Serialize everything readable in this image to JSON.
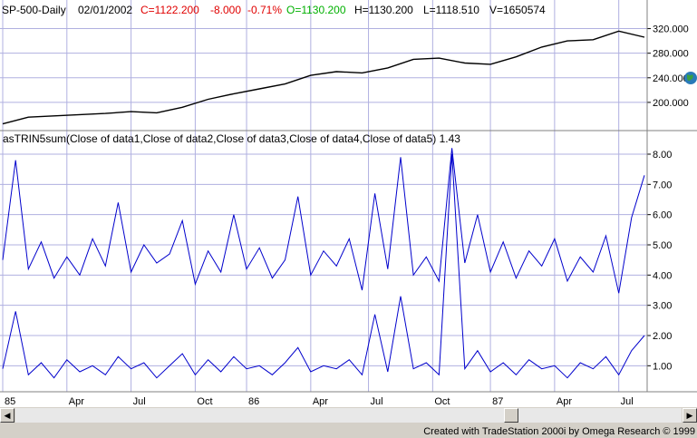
{
  "header": {
    "symbol": "SP-500-Daily",
    "date": "02/01/2002",
    "close": "C=1122.200",
    "change": "-8.000",
    "change_pct": "-0.71%",
    "open": "O=1130.200",
    "high": "H=1130.200",
    "low": "L=1118.510",
    "volume": "V=1650574"
  },
  "indicator_title": "asTRIN5sum(Close of data1,Close of data2,Close of data3,Close of data4,Close of data5)  1.43",
  "credit": "Created with TradeStation 2000i by Omega Research © 1999",
  "colors": {
    "price_line": "#000000",
    "trin_line": "#0000cc",
    "grid": "#b0b0e0",
    "plot_bg": "#ffffff"
  },
  "chart_data": [
    {
      "type": "line",
      "name": "price",
      "yticks": [
        "320.000",
        "280.000",
        "240.000",
        "200.000"
      ],
      "ytick_values": [
        320,
        280,
        240,
        200
      ],
      "ylim": [
        160,
        340
      ],
      "series": [
        {
          "name": "SP-500-Daily",
          "x": [
            0,
            4,
            8,
            12,
            16,
            20,
            24,
            28,
            32,
            36,
            40,
            44,
            48,
            52,
            56,
            60,
            64,
            68,
            72,
            76,
            80,
            84,
            88,
            92,
            96,
            100
          ],
          "y": [
            165,
            176,
            178,
            180,
            182,
            185,
            183,
            192,
            205,
            214,
            222,
            230,
            244,
            250,
            248,
            256,
            270,
            272,
            264,
            262,
            274,
            290,
            300,
            302,
            316,
            306
          ]
        }
      ]
    },
    {
      "type": "line",
      "name": "indicator",
      "yticks": [
        "8.00",
        "7.00",
        "6.00",
        "5.00",
        "4.00",
        "3.00",
        "2.00",
        "1.00"
      ],
      "ytick_values": [
        8,
        7,
        6,
        5,
        4,
        3,
        2,
        1
      ],
      "ylim": [
        0.2,
        8.3
      ],
      "series": [
        {
          "name": "TRIN sum",
          "x": [
            0,
            2,
            4,
            6,
            8,
            10,
            12,
            14,
            16,
            18,
            20,
            22,
            24,
            26,
            28,
            30,
            32,
            34,
            36,
            38,
            40,
            42,
            44,
            46,
            48,
            50,
            52,
            54,
            56,
            58,
            60,
            62,
            64,
            66,
            68,
            70,
            72,
            74,
            76,
            78,
            80,
            82,
            84,
            86,
            88,
            90,
            92,
            94,
            96,
            98,
            100
          ],
          "y": [
            4.5,
            7.8,
            4.2,
            5.1,
            3.9,
            4.6,
            4.0,
            5.2,
            4.3,
            6.4,
            4.1,
            5.0,
            4.4,
            4.7,
            5.8,
            3.7,
            4.8,
            4.1,
            6.0,
            4.2,
            4.9,
            3.9,
            4.5,
            6.6,
            4.0,
            4.8,
            4.3,
            5.2,
            3.5,
            6.7,
            4.2,
            7.9,
            4.0,
            4.6,
            3.8,
            8.2,
            4.4,
            6.0,
            4.1,
            5.1,
            3.9,
            4.8,
            4.3,
            5.2,
            3.8,
            4.6,
            4.1,
            5.3,
            3.4,
            5.9,
            7.3
          ]
        },
        {
          "name": "TRIN",
          "x": [
            0,
            2,
            4,
            6,
            8,
            10,
            12,
            14,
            16,
            18,
            20,
            22,
            24,
            26,
            28,
            30,
            32,
            34,
            36,
            38,
            40,
            42,
            44,
            46,
            48,
            50,
            52,
            54,
            56,
            58,
            60,
            62,
            64,
            66,
            68,
            70,
            72,
            74,
            76,
            78,
            80,
            82,
            84,
            86,
            88,
            90,
            92,
            94,
            96,
            98,
            100
          ],
          "y": [
            0.9,
            2.8,
            0.7,
            1.1,
            0.6,
            1.2,
            0.8,
            1.0,
            0.7,
            1.3,
            0.9,
            1.1,
            0.6,
            1.0,
            1.4,
            0.7,
            1.2,
            0.8,
            1.3,
            0.9,
            1.0,
            0.7,
            1.1,
            1.6,
            0.8,
            1.0,
            0.9,
            1.2,
            0.7,
            2.7,
            0.8,
            3.3,
            0.9,
            1.1,
            0.7,
            8.0,
            0.9,
            1.5,
            0.8,
            1.1,
            0.7,
            1.2,
            0.9,
            1.0,
            0.6,
            1.1,
            0.9,
            1.3,
            0.7,
            1.5,
            2.0
          ]
        }
      ],
      "xticks": [
        "85",
        "Apr",
        "Jul",
        "Oct",
        "86",
        "Apr",
        "Jul",
        "Oct",
        "87",
        "Apr",
        "Jul"
      ],
      "xtick_values": [
        0,
        10,
        20,
        30,
        38,
        48,
        57,
        67,
        76,
        86,
        96
      ]
    }
  ]
}
